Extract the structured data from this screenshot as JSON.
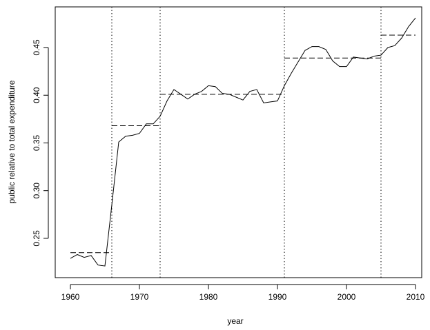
{
  "chart_data": {
    "type": "line",
    "x_label": "year",
    "y_label": "public relative to total expenditure",
    "x": [
      1960,
      1961,
      1962,
      1963,
      1964,
      1965,
      1966,
      1967,
      1968,
      1969,
      1970,
      1971,
      1972,
      1973,
      1974,
      1975,
      1976,
      1977,
      1978,
      1979,
      1980,
      1981,
      1982,
      1983,
      1984,
      1985,
      1986,
      1987,
      1988,
      1989,
      1990,
      1991,
      1992,
      1993,
      1994,
      1995,
      1996,
      1997,
      1998,
      1999,
      2000,
      2001,
      2002,
      2003,
      2004,
      2005,
      2006,
      2007,
      2008,
      2009,
      2010
    ],
    "series": [
      {
        "color": "#000000",
        "values": [
          0.229,
          0.233,
          0.23,
          0.232,
          0.222,
          0.221,
          0.285,
          0.351,
          0.357,
          0.358,
          0.36,
          0.37,
          0.37,
          0.378,
          0.394,
          0.406,
          0.401,
          0.396,
          0.401,
          0.404,
          0.41,
          0.409,
          0.402,
          0.401,
          0.398,
          0.395,
          0.404,
          0.406,
          0.392,
          0.393,
          0.394,
          0.41,
          0.423,
          0.435,
          0.447,
          0.451,
          0.451,
          0.448,
          0.436,
          0.43,
          0.43,
          0.44,
          0.439,
          0.438,
          0.441,
          0.442,
          0.45,
          0.452,
          0.46,
          0.472,
          0.481
        ]
      }
    ],
    "breakpoints": [
      1966,
      1973,
      1991,
      2005
    ],
    "segment_means": [
      {
        "start": 1960,
        "end": 1966,
        "value": 0.235
      },
      {
        "start": 1966,
        "end": 1973,
        "value": 0.368
      },
      {
        "start": 1973,
        "end": 1991,
        "value": 0.401
      },
      {
        "start": 1991,
        "end": 2005,
        "value": 0.439
      },
      {
        "start": 2005,
        "end": 2010,
        "value": 0.463
      }
    ],
    "xlim": [
      1957.8,
      2010.9
    ],
    "ylim": [
      0.2088,
      0.4926
    ],
    "xticks": [
      1960,
      1970,
      1980,
      1990,
      2000,
      2010
    ],
    "yticks": [
      0.25,
      {
        "value": 0.3,
        "label": "0.30"
      },
      0.35,
      {
        "value": 0.4,
        "label": "0.40"
      },
      0.45
    ]
  }
}
